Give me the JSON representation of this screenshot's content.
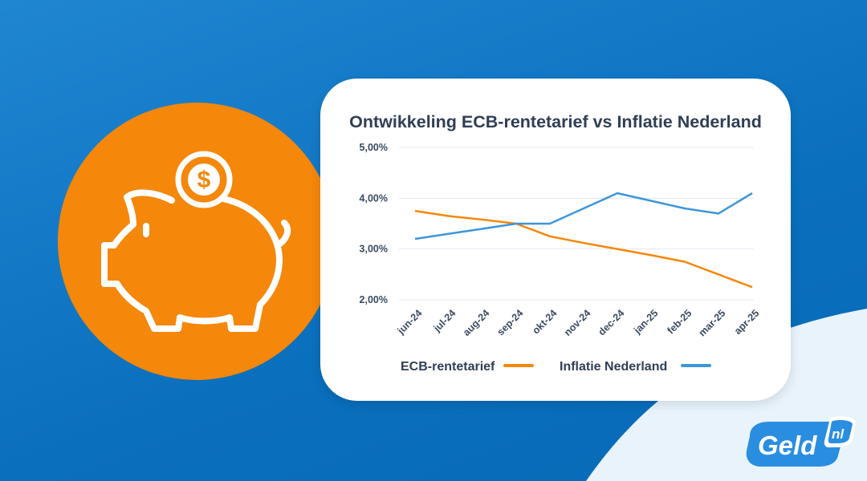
{
  "chart_data": {
    "type": "line",
    "title": "Ontwikkeling ECB-rentetarief vs Inflatie Nederland",
    "categories": [
      "jun-24",
      "jul-24",
      "aug-24",
      "sep-24",
      "okt-24",
      "nov-24",
      "dec-24",
      "jan-25",
      "feb-25",
      "mar-25",
      "apr-25"
    ],
    "y_ticks": [
      "2,00%",
      "3,00%",
      "4,00%",
      "5,00%"
    ],
    "y_tick_values": [
      2,
      3,
      4,
      5
    ],
    "ylim": [
      2,
      5
    ],
    "grid": true,
    "legend_position": "bottom",
    "series": [
      {
        "name": "ECB-rentetarief",
        "color": "#f5870a",
        "values": [
          3.75,
          3.65,
          3.58,
          3.5,
          3.25,
          3.12,
          3.0,
          2.88,
          2.75,
          2.5,
          2.25
        ]
      },
      {
        "name": "Inflatie Nederland",
        "color": "#3e96d8",
        "values": [
          3.2,
          3.3,
          3.4,
          3.5,
          3.5,
          3.8,
          4.1,
          3.95,
          3.8,
          3.7,
          4.1
        ]
      }
    ]
  },
  "brand": {
    "logo_main": "Geld",
    "logo_suffix": "nl",
    "logo_color": "#2a8ee0",
    "illustration_icon": "piggy-bank-icon",
    "coin_icon": "dollar-coin-icon",
    "circle_color": "#f5870a"
  }
}
